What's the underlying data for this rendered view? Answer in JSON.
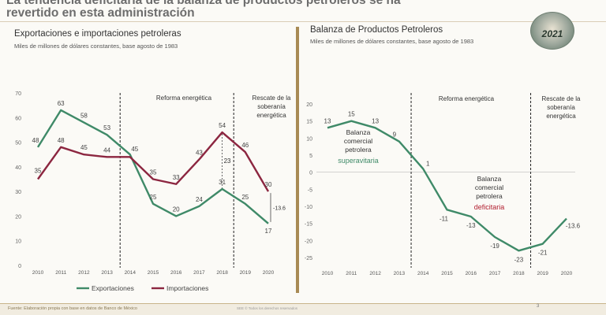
{
  "headline": {
    "line1": "La tendencia deficitaria de la balanza de productos petroleros se ha",
    "line2": "revertido en esta administración"
  },
  "left_panel": {
    "title": "Exportaciones e importaciones petroleras",
    "subtitle": "Miles de millones de dólares constantes, base agosto de 1983"
  },
  "right_panel": {
    "title": "Balanza de Productos Petroleros",
    "subtitle": "Miles de millones de dólares constantes, base agosto de 1983"
  },
  "logo": {
    "text": "2021"
  },
  "footer": {
    "source": "Fuente: Elaboración propia con base en datos de Banco de México",
    "copyright": "SEE ©  Todos los derechos reservados",
    "page": "3"
  },
  "colors": {
    "exports": "#3f8a68",
    "imports": "#8c2640",
    "balance": "#3f8a68",
    "deficit_text": "#b22030",
    "accent": "#a88a54"
  },
  "chart_data": [
    {
      "type": "line",
      "x": [
        "2010",
        "2011",
        "2012",
        "2013",
        "2014",
        "2015",
        "2016",
        "2017",
        "2018",
        "2019",
        "2020"
      ],
      "ylim": [
        0,
        70
      ],
      "y_ticks": [
        "0",
        "10",
        "20",
        "30",
        "40",
        "50",
        "60",
        "70"
      ],
      "series": [
        {
          "name": "Exportaciones",
          "values": [
            48,
            63,
            58,
            53,
            45,
            25,
            20,
            24,
            31,
            25,
            17
          ]
        },
        {
          "name": "Importaciones",
          "values": [
            35,
            48,
            45,
            44,
            44,
            35,
            33,
            43,
            54,
            46,
            30
          ]
        }
      ],
      "point_labels": {
        "Exportaciones": [
          "48",
          "63",
          "58",
          "53",
          "45",
          "25",
          "20",
          "24",
          "31",
          "25",
          "17"
        ],
        "Importaciones": [
          "35",
          "48",
          "45",
          "44",
          "",
          "35",
          "33",
          "43",
          "54",
          "46",
          "30"
        ]
      },
      "annotations": {
        "reform": "Reforma energética",
        "rescue": "Rescate de la soberanía energética",
        "gap_2018": "23",
        "gap_2020": "-13.6"
      },
      "legend": "bottom"
    },
    {
      "type": "line",
      "x": [
        "2010",
        "2011",
        "2012",
        "2013",
        "2014",
        "2015",
        "2016",
        "2017",
        "2018",
        "2019",
        "2020"
      ],
      "ylim": [
        -25,
        20
      ],
      "y_ticks": [
        "20",
        "15",
        "10",
        "5",
        "0",
        "-5",
        "-10",
        "-15",
        "-20",
        "-25"
      ],
      "series": [
        {
          "name": "",
          "values": [
            13,
            15,
            13,
            9,
            1,
            -11,
            -13,
            -19,
            -23,
            -21,
            -13.6
          ]
        }
      ],
      "point_labels": [
        "13",
        "15",
        "13",
        "9",
        "1",
        "-11",
        "-13",
        "-19",
        "-23",
        "-21",
        "-13.6"
      ],
      "annotations": {
        "reform": "Reforma energética",
        "rescue": "Rescate de la soberanía energética",
        "surplus_label": "Balanza comercial petrolera",
        "surplus_word": "superavitaria",
        "deficit_label": "Balanza comercial petrolera",
        "deficit_word": "deficitaria"
      }
    }
  ]
}
